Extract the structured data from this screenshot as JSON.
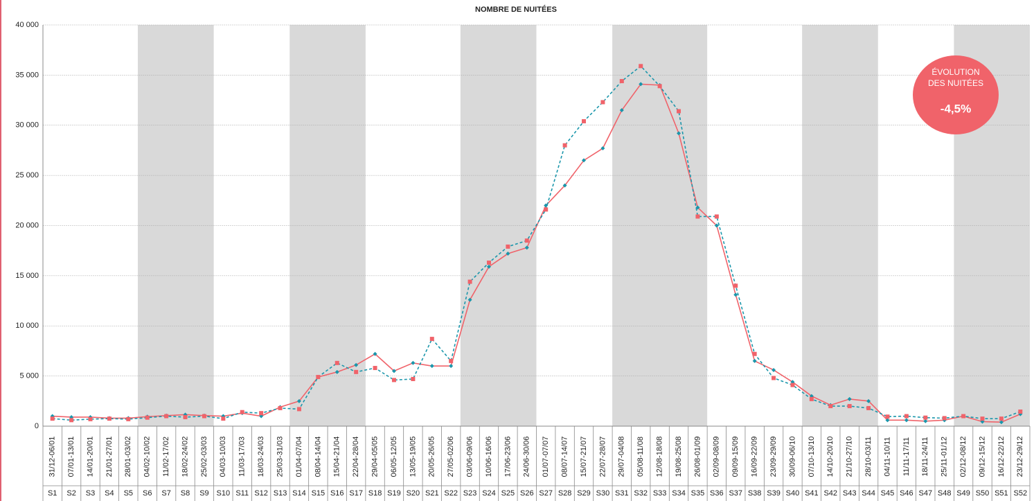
{
  "chart_data": {
    "type": "line",
    "title": "NOMBRE DE NUITÉES",
    "categories": [
      "31/12-06/01",
      "07/01-13/01",
      "14/01-20/01",
      "21/01-27/01",
      "28/01-03/02",
      "04/02-10/02",
      "11/02-17/02",
      "18/02-24/02",
      "25/02-03/03",
      "04/03-10/03",
      "11/03-17/03",
      "18/03-24/03",
      "25/03-31/03",
      "01/04-07/04",
      "08/04-14/04",
      "15/04-21/04",
      "22/04-28/04",
      "29/04-05/05",
      "06/05-12/05",
      "13/05-19/05",
      "20/05-26/05",
      "27/05-02/06",
      "03/06-09/06",
      "10/06-16/06",
      "17/06-23/06",
      "24/06-30/06",
      "01/07-07/07",
      "08/07-14/07",
      "15/07-21/07",
      "22/07-28/07",
      "29/07-04/08",
      "05/08-11/08",
      "12/08-18/08",
      "19/08-25/08",
      "26/08-01/09",
      "02/09-08/09",
      "09/09-15/09",
      "16/09-22/09",
      "23/09-29/09",
      "30/09-06/10",
      "07/10-13/10",
      "14/10-20/10",
      "21/10-27/10",
      "28/10-03/11",
      "04/11-10/11",
      "11/11-17/11",
      "18/11-24/11",
      "25/11-01/12",
      "02/12-08/12",
      "09/12-15/12",
      "16/12-22/12",
      "23/12-29/12"
    ],
    "weeks": [
      "S1",
      "S2",
      "S3",
      "S4",
      "S5",
      "S6",
      "S7",
      "S8",
      "S9",
      "S10",
      "S11",
      "S12",
      "S13",
      "S14",
      "S15",
      "S16",
      "S17",
      "S18",
      "S19",
      "S20",
      "S21",
      "S22",
      "S23",
      "S24",
      "S25",
      "S26",
      "S27",
      "S28",
      "S29",
      "S30",
      "S31",
      "S32",
      "S33",
      "S34",
      "S35",
      "S36",
      "S37",
      "S38",
      "S39",
      "S40",
      "S41",
      "S42",
      "S43",
      "S44",
      "S45",
      "S46",
      "S47",
      "S48",
      "S49",
      "S50",
      "S51",
      "S52"
    ],
    "series": [
      {
        "color": "#f0636a",
        "marker_color": "#1a96ab",
        "marker": "diamond",
        "line_style": "solid",
        "values": [
          1000,
          900,
          900,
          800,
          800,
          950,
          1050,
          1150,
          1050,
          1000,
          1300,
          1000,
          1900,
          2500,
          4900,
          5400,
          6100,
          7200,
          5500,
          6300,
          6000,
          6000,
          12600,
          15900,
          17200,
          17800,
          22000,
          24000,
          26500,
          27700,
          31500,
          34100,
          34000,
          29200,
          21800,
          20000,
          13100,
          6500,
          5600,
          4400,
          3000,
          2100,
          2700,
          2500,
          600,
          600,
          500,
          600,
          1000,
          450,
          400,
          1200
        ]
      },
      {
        "color": "#1a96ab",
        "marker_color": "#f0636a",
        "marker": "square",
        "line_style": "dashed",
        "values": [
          750,
          600,
          700,
          750,
          700,
          850,
          1000,
          900,
          1000,
          750,
          1400,
          1300,
          1800,
          1700,
          4900,
          6300,
          5400,
          5800,
          4600,
          4700,
          8700,
          6500,
          14400,
          16300,
          17900,
          18500,
          21600,
          28000,
          30400,
          32300,
          34400,
          35900,
          33900,
          31400,
          20900,
          20900,
          14000,
          7200,
          4800,
          4100,
          2700,
          2000,
          2000,
          1800,
          950,
          1000,
          850,
          800,
          1000,
          750,
          750,
          1450
        ]
      }
    ],
    "ylim": [
      0,
      40000
    ],
    "yticks": [
      0,
      {
        "value": 5000,
        "label": "5 000"
      },
      {
        "value": 10000,
        "label": "10 000"
      },
      {
        "value": 15000,
        "label": "15 000"
      },
      {
        "value": 20000,
        "label": "20 000"
      },
      {
        "value": 25000,
        "label": "25 000"
      },
      {
        "value": 30000,
        "label": "30 000"
      },
      {
        "value": 35000,
        "label": "35 000"
      },
      {
        "value": 40000,
        "label": "40 000"
      }
    ],
    "grid": true,
    "annotation": {
      "title": [
        "ÉVOLUTION",
        "DES NUITÉES"
      ],
      "value": "-4,5%"
    }
  }
}
